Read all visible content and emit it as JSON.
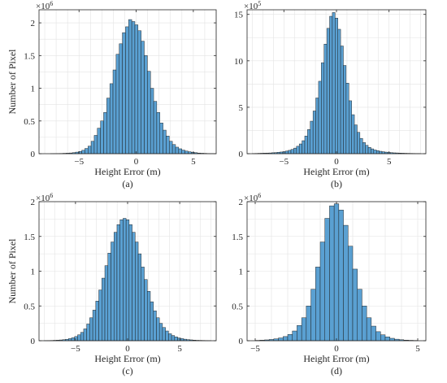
{
  "figure": {
    "background": "#ffffff",
    "bar_color": "#5aa0d2",
    "bar_edge": "#1a1a1a",
    "grid_color": "#e3e3e3"
  },
  "chart_data": [
    {
      "type": "bar",
      "panel_label": "(a)",
      "xlabel": "Height Error (m)",
      "ylabel": "Number of Pixel",
      "exponent": "6",
      "xlim": [
        -8.5,
        7
      ],
      "ylim": [
        0,
        2.2
      ],
      "xticks": [
        -5,
        0,
        5
      ],
      "yticks": [
        0,
        0.5,
        1,
        1.5,
        2
      ],
      "yticklabels": [
        "0",
        "0.5",
        "1",
        "1.5",
        "2"
      ],
      "bin_edges": [
        -7.5,
        7.0
      ],
      "values": [
        0.001,
        0.002,
        0.003,
        0.004,
        0.006,
        0.008,
        0.011,
        0.016,
        0.024,
        0.035,
        0.052,
        0.08,
        0.115,
        0.19,
        0.28,
        0.39,
        0.5,
        0.63,
        0.85,
        1.07,
        1.28,
        1.52,
        1.68,
        1.85,
        1.94,
        2.05,
        2.02,
        1.97,
        1.88,
        1.72,
        1.5,
        1.26,
        1.0,
        0.8,
        0.63,
        0.47,
        0.36,
        0.27,
        0.19,
        0.14,
        0.1,
        0.075,
        0.055,
        0.04,
        0.03,
        0.022,
        0.015,
        0.01,
        0.007,
        0.005,
        0.003,
        0.002,
        0.001
      ]
    },
    {
      "type": "bar",
      "panel_label": "(b)",
      "xlabel": "Height Error (m)",
      "ylabel": "",
      "exponent": "5",
      "xlim": [
        -8.5,
        8.5
      ],
      "ylim": [
        0,
        15.5
      ],
      "xticks": [
        -5,
        0,
        5
      ],
      "yticks": [
        0,
        5,
        10,
        15
      ],
      "yticklabels": [
        "0",
        "5",
        "10",
        "15"
      ],
      "bin_edges": [
        -8.0,
        8.0
      ],
      "values": [
        0.02,
        0.03,
        0.04,
        0.05,
        0.06,
        0.07,
        0.08,
        0.1,
        0.12,
        0.15,
        0.18,
        0.22,
        0.28,
        0.36,
        0.46,
        0.6,
        0.8,
        1.05,
        1.4,
        1.9,
        2.6,
        3.5,
        4.6,
        6.0,
        7.8,
        9.8,
        11.8,
        13.5,
        14.8,
        15.2,
        14.6,
        13.4,
        11.6,
        9.5,
        7.6,
        5.7,
        4.2,
        3.1,
        2.3,
        1.65,
        1.2,
        0.9,
        0.68,
        0.52,
        0.4,
        0.32,
        0.26,
        0.21,
        0.17,
        0.14,
        0.11,
        0.09,
        0.08,
        0.065,
        0.055,
        0.045,
        0.038,
        0.032,
        0.027,
        0.022,
        0.02
      ]
    },
    {
      "type": "bar",
      "panel_label": "(c)",
      "xlabel": "Height Error (m)",
      "ylabel": "Number of Pixel",
      "exponent": "6",
      "xlim": [
        -8.5,
        8.5
      ],
      "ylim": [
        0,
        2.0
      ],
      "xticks": [
        -5,
        0,
        5
      ],
      "yticks": [
        0,
        0.5,
        1,
        1.5,
        2
      ],
      "yticklabels": [
        "0",
        "0.5",
        "1",
        "1.5",
        "2"
      ],
      "bin_edges": [
        -8.0,
        8.0
      ],
      "values": [
        0.002,
        0.003,
        0.004,
        0.006,
        0.008,
        0.011,
        0.015,
        0.021,
        0.03,
        0.042,
        0.06,
        0.085,
        0.12,
        0.17,
        0.24,
        0.33,
        0.44,
        0.57,
        0.73,
        0.9,
        1.08,
        1.26,
        1.42,
        1.56,
        1.67,
        1.74,
        1.76,
        1.74,
        1.67,
        1.56,
        1.42,
        1.25,
        1.06,
        0.88,
        0.71,
        0.56,
        0.43,
        0.33,
        0.25,
        0.19,
        0.14,
        0.1,
        0.075,
        0.055,
        0.04,
        0.03,
        0.022,
        0.016,
        0.012,
        0.009,
        0.006,
        0.005,
        0.004,
        0.003,
        0.002
      ]
    },
    {
      "type": "bar",
      "panel_label": "(d)",
      "xlabel": "Height Error (m)",
      "ylabel": "",
      "exponent": "6",
      "xlim": [
        -5.5,
        5.5
      ],
      "ylim": [
        0,
        2.0
      ],
      "xticks": [
        -5,
        0,
        5
      ],
      "yticks": [
        0,
        0.5,
        1,
        1.5,
        2
      ],
      "yticklabels": [
        "0",
        "0.5",
        "1",
        "1.5",
        "2"
      ],
      "bin_edges": [
        -5.0,
        5.0
      ],
      "values": [
        0.005,
        0.008,
        0.012,
        0.018,
        0.027,
        0.04,
        0.06,
        0.09,
        0.14,
        0.22,
        0.33,
        0.5,
        0.74,
        1.06,
        1.42,
        1.76,
        1.94,
        1.97,
        1.88,
        1.66,
        1.36,
        1.03,
        0.74,
        0.5,
        0.33,
        0.21,
        0.13,
        0.085,
        0.055,
        0.035,
        0.022,
        0.014,
        0.009,
        0.006,
        0.004
      ]
    }
  ]
}
